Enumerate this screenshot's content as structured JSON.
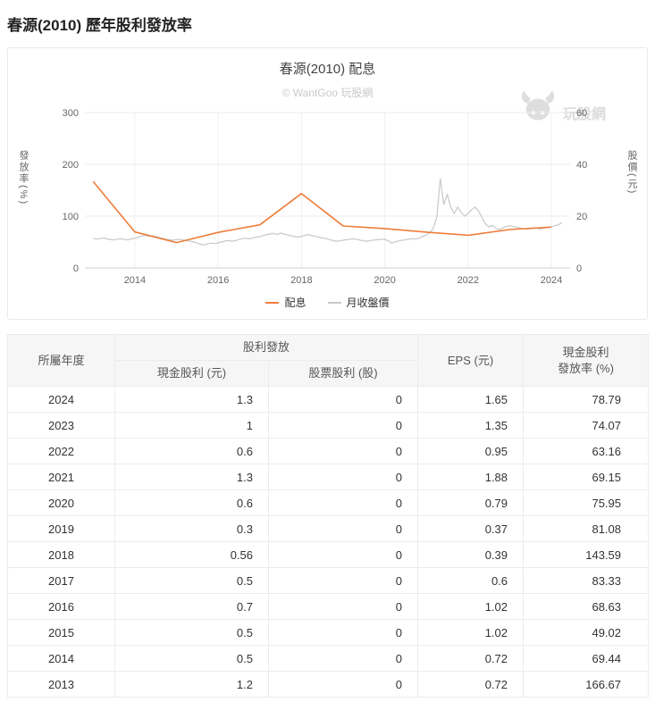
{
  "page": {
    "title": "春源(2010) 歷年股利發放率"
  },
  "chart": {
    "title": "春源(2010) 配息",
    "watermark": "© WantGoo 玩股網",
    "logo_text": "玩股網",
    "y_left_label": "發放率(%)",
    "y_right_label": "股價(元)",
    "legend": [
      {
        "label": "配息",
        "color": "#ef7d3a"
      },
      {
        "label": "月收盤價",
        "color": "#c8c8c8"
      }
    ]
  },
  "chart_data": {
    "type": "line",
    "title": "春源(2010) 配息",
    "x_range": [
      2012.8,
      2024.45
    ],
    "x_ticks": [
      2014,
      2016,
      2018,
      2020,
      2022,
      2024
    ],
    "y_left": {
      "label": "發放率(%)",
      "min": 0,
      "max": 300,
      "ticks": [
        0,
        100,
        200,
        300
      ]
    },
    "y_right": {
      "label": "股價(元)",
      "min": 0,
      "max": 60,
      "ticks": [
        0,
        20,
        40,
        60
      ]
    },
    "series": [
      {
        "name": "配息",
        "axis": "left",
        "color": "#ef7d3a",
        "width": 1.6,
        "x": [
          2013,
          2014,
          2015,
          2016,
          2017,
          2018,
          2019,
          2020,
          2021,
          2022,
          2023,
          2024
        ],
        "y": [
          166.67,
          69.44,
          49.02,
          68.63,
          83.33,
          143.59,
          81.08,
          75.95,
          69.15,
          63.16,
          74.07,
          78.79
        ]
      },
      {
        "name": "月收盤價",
        "axis": "right",
        "color": "#c8c8c8",
        "width": 1.2,
        "x_start": 2013,
        "x_step": 0.0833333,
        "y": [
          11.4,
          11.1,
          11.3,
          11.6,
          11.2,
          11.0,
          10.8,
          11.1,
          11.3,
          11.0,
          10.8,
          11.2,
          11.5,
          11.9,
          12.3,
          12.6,
          12.2,
          12.5,
          12.1,
          11.8,
          11.5,
          11.1,
          10.9,
          10.7,
          10.9,
          11.1,
          10.8,
          10.5,
          10.3,
          10.0,
          9.6,
          9.1,
          8.9,
          9.3,
          9.6,
          9.4,
          9.7,
          10.0,
          10.4,
          10.6,
          10.3,
          10.6,
          11.0,
          11.3,
          11.5,
          11.2,
          11.6,
          11.9,
          12.1,
          12.5,
          12.9,
          13.1,
          13.3,
          12.9,
          13.4,
          13.1,
          12.7,
          12.4,
          12.1,
          11.9,
          12.2,
          12.6,
          12.9,
          12.5,
          12.2,
          11.9,
          11.6,
          11.3,
          11.0,
          10.6,
          10.3,
          10.5,
          10.7,
          10.9,
          11.1,
          11.3,
          11.0,
          10.7,
          10.5,
          10.3,
          10.6,
          10.8,
          10.9,
          11.1,
          11.0,
          10.5,
          9.6,
          10.1,
          10.4,
          10.7,
          10.9,
          11.1,
          11.3,
          11.1,
          11.6,
          12.2,
          12.8,
          13.6,
          15.5,
          19.5,
          34.5,
          24.5,
          28.5,
          23.5,
          21.0,
          23.5,
          21.5,
          20.0,
          21.0,
          22.5,
          23.5,
          22.0,
          19.5,
          17.0,
          15.8,
          16.5,
          15.3,
          14.8,
          15.4,
          16.0,
          16.3,
          16.0,
          15.7,
          15.4,
          15.1,
          14.9,
          15.2,
          15.6,
          15.2,
          15.0,
          15.4,
          15.7,
          15.9,
          16.3,
          16.6,
          17.5
        ]
      }
    ]
  },
  "table": {
    "col_year": "所屬年度",
    "group_dividend": "股利發放",
    "col_cash": "現金股利 (元)",
    "col_stock": "股票股利 (股)",
    "col_eps": "EPS (元)",
    "col_ratio": [
      "現金股利",
      "發放率 (%)"
    ],
    "rows": [
      [
        "2024",
        "1.3",
        "0",
        "1.65",
        "78.79"
      ],
      [
        "2023",
        "1",
        "0",
        "1.35",
        "74.07"
      ],
      [
        "2022",
        "0.6",
        "0",
        "0.95",
        "63.16"
      ],
      [
        "2021",
        "1.3",
        "0",
        "1.88",
        "69.15"
      ],
      [
        "2020",
        "0.6",
        "0",
        "0.79",
        "75.95"
      ],
      [
        "2019",
        "0.3",
        "0",
        "0.37",
        "81.08"
      ],
      [
        "2018",
        "0.56",
        "0",
        "0.39",
        "143.59"
      ],
      [
        "2017",
        "0.5",
        "0",
        "0.6",
        "83.33"
      ],
      [
        "2016",
        "0.7",
        "0",
        "1.02",
        "68.63"
      ],
      [
        "2015",
        "0.5",
        "0",
        "1.02",
        "49.02"
      ],
      [
        "2014",
        "0.5",
        "0",
        "0.72",
        "69.44"
      ],
      [
        "2013",
        "1.2",
        "0",
        "0.72",
        "166.67"
      ]
    ]
  }
}
